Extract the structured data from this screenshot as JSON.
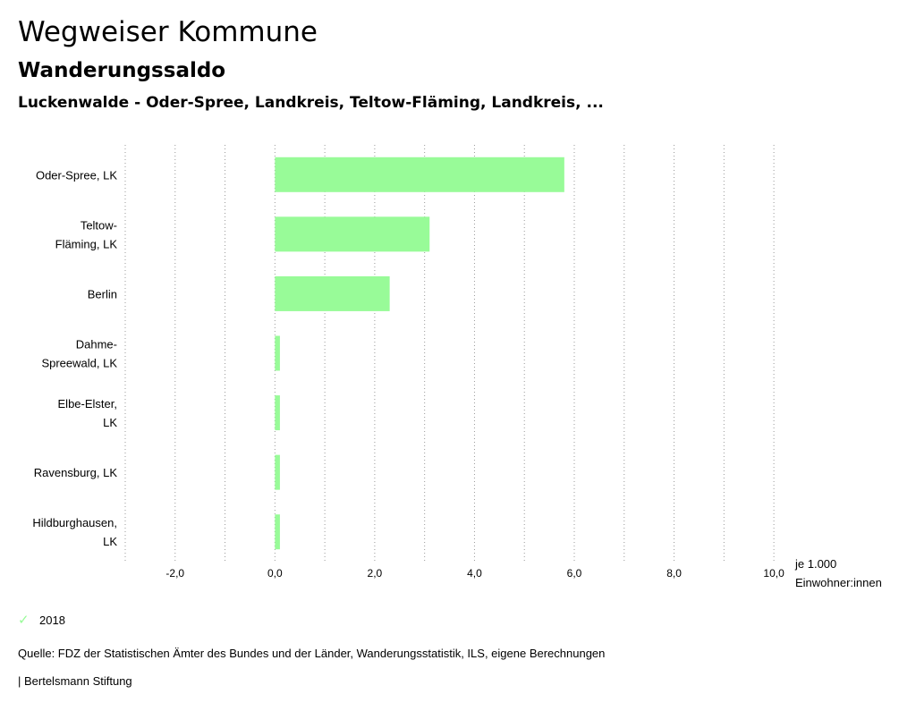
{
  "header": {
    "title": "Wegweiser Kommune",
    "subtitle": "Wanderungssaldo",
    "region": "Luckenwalde - Oder-Spree, Landkreis, Teltow-Fläming, Landkreis, ..."
  },
  "chart_data": {
    "type": "bar",
    "orientation": "horizontal",
    "categories": [
      [
        "Oder-Spree, LK"
      ],
      [
        "Teltow-",
        "Fläming, LK"
      ],
      [
        "Berlin"
      ],
      [
        "Dahme-",
        "Spreewald, LK"
      ],
      [
        "Elbe-Elster,",
        "LK"
      ],
      [
        "Ravensburg, LK"
      ],
      [
        "Hildburghausen,",
        "LK"
      ]
    ],
    "series": [
      {
        "name": "2018",
        "color": "#98fb98",
        "values": [
          5.8,
          3.1,
          2.3,
          0.1,
          0.1,
          0.1,
          0.1
        ]
      }
    ],
    "xlim": [
      -3.0,
      10.5
    ],
    "ticks": [
      -2.0,
      0.0,
      2.0,
      4.0,
      6.0,
      8.0,
      10.0
    ],
    "tick_labels": [
      "-2,0",
      "0,0",
      "2,0",
      "4,0",
      "6,0",
      "8,0",
      "10,0"
    ],
    "unit_label": [
      "je 1.000",
      "Einwohner:innen"
    ],
    "grid": true,
    "legend": "bottom-left"
  },
  "legend": {
    "check_icon": "✓",
    "label": "2018"
  },
  "footer": {
    "source": "Quelle: FDZ der Statistischen Ämter des Bundes und der Länder, Wanderungsstatistik, ILS, eigene Berechnungen",
    "credit": "| Bertelsmann Stiftung"
  }
}
